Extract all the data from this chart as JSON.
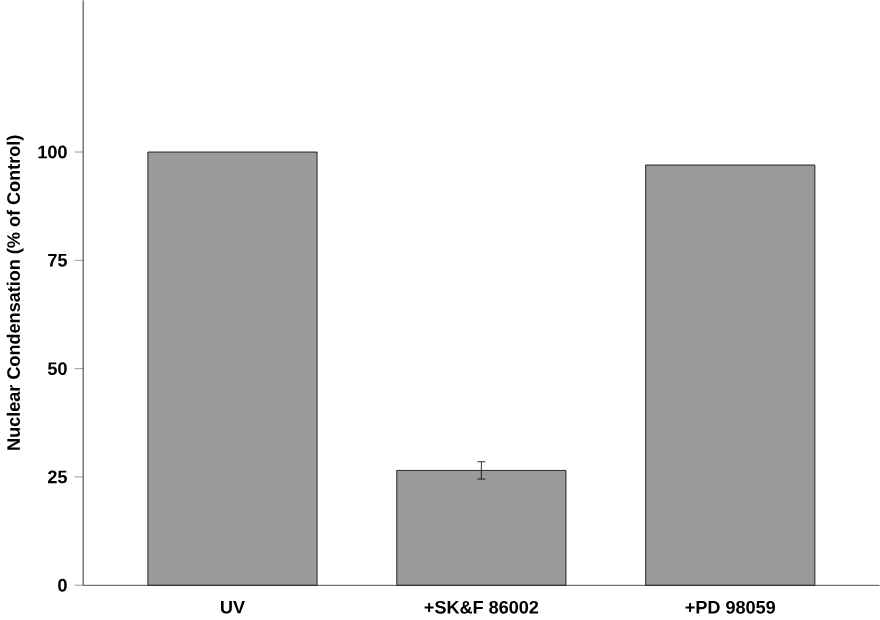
{
  "chart_data": {
    "type": "bar",
    "ylabel": "Nuclear Condensation (% of Control)",
    "categories": [
      "UV",
      "+SK&F 86002",
      "+PD 98059"
    ],
    "values": [
      100,
      26.5,
      97
    ],
    "errors": [
      null,
      2,
      null
    ],
    "color": "#9a9a9a",
    "ylim": [
      0,
      135
    ],
    "yticks": [
      0,
      25,
      50,
      75,
      100
    ],
    "grid": false
  }
}
